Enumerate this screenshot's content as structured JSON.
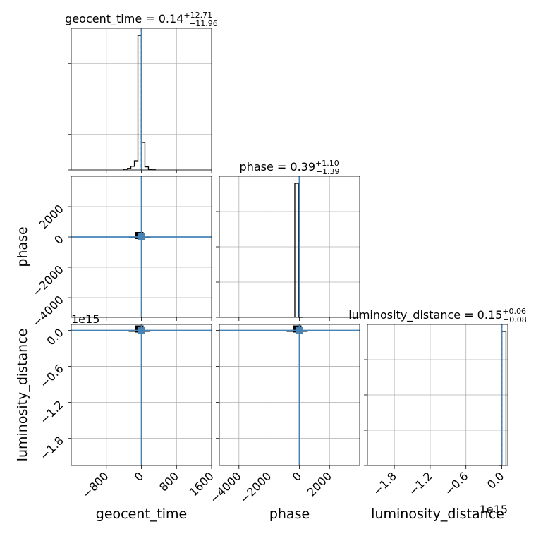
{
  "chart_data": {
    "type": "corner",
    "parameters": [
      {
        "name": "geocent_time",
        "title_prefix": "geocent_time = ",
        "median": "0.14",
        "plus": "+12.71",
        "minus": "−11.96",
        "ticks": [
          {
            "value": -800,
            "label": "−800"
          },
          {
            "value": 0,
            "label": "0"
          },
          {
            "value": 800,
            "label": "800"
          },
          {
            "value": 1600,
            "label": "1600"
          }
        ],
        "range": [
          -1600,
          1600
        ],
        "median_value": 0,
        "truth": 0,
        "hist": {
          "edges": [
            -400,
            -320,
            -240,
            -160,
            -80,
            0,
            80,
            160,
            240,
            320
          ],
          "counts": [
            0.006,
            0.01,
            0.024,
            0.06,
            0.88,
            0.18,
            0.02,
            0.004,
            0.001
          ]
        }
      },
      {
        "name": "phase",
        "title_prefix": "phase = ",
        "median": "0.39",
        "plus": "+1.10",
        "minus": "−1.39",
        "ticks": [
          {
            "value": -4000,
            "label": "−4000"
          },
          {
            "value": -2000,
            "label": "−2000"
          },
          {
            "value": 0,
            "label": "0"
          },
          {
            "value": 2000,
            "label": "2000"
          }
        ],
        "range": [
          -5300,
          4000
        ],
        "median_value": 0,
        "truth": 0,
        "hist": {
          "edges": [
            -300,
            -50,
            200
          ],
          "counts": [
            0.85,
            0.0
          ]
        }
      },
      {
        "name": "luminosity_distance",
        "title_prefix": "luminosity_distance = ",
        "median": "0.15",
        "plus": "+0.06",
        "minus": "−0.08",
        "offset_text": "1e15",
        "ticks": [
          {
            "value": -1.8,
            "label": "−1.8"
          },
          {
            "value": -1.2,
            "label": "−1.2"
          },
          {
            "value": -0.6,
            "label": "−0.6"
          },
          {
            "value": 0.0,
            "label": "0.0"
          }
        ],
        "range": [
          -2.25,
          0.1
        ],
        "median_value": 0,
        "truth": 0,
        "hist": {
          "edges": [
            -0.04,
            0.0,
            0.07
          ],
          "counts": [
            0.0,
            0.88
          ]
        }
      }
    ],
    "diag_tick_fractions": [
      0.0,
      0.25,
      0.5,
      0.75
    ]
  }
}
